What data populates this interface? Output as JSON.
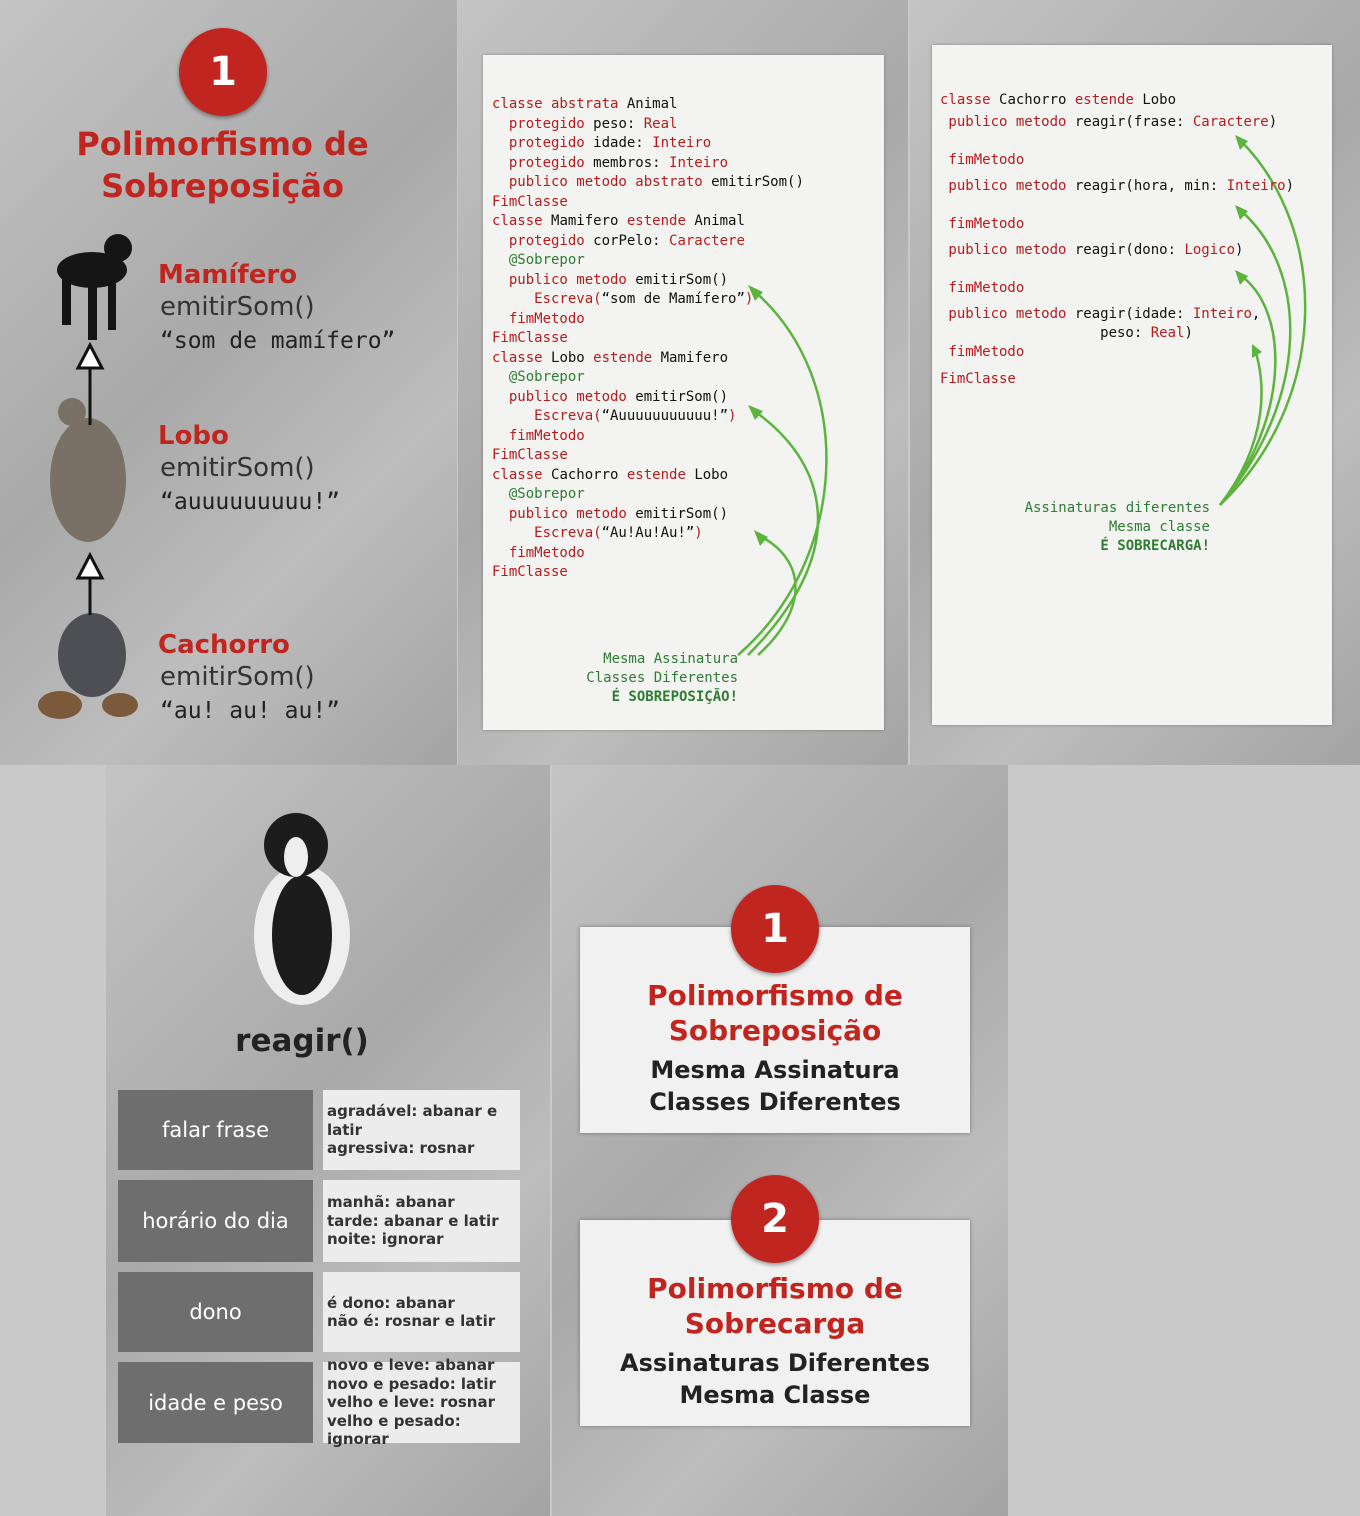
{
  "panel1": {
    "badge": "1",
    "title": [
      "Polimorfismo de",
      "Sobreposição"
    ],
    "classes": [
      {
        "name": "Mamífero",
        "method": "emitirSom()",
        "sound": "“som de mamífero”"
      },
      {
        "name": "Lobo",
        "method": "emitirSom()",
        "sound": "“auuuuuuuuu!”"
      },
      {
        "name": "Cachorro",
        "method": "emitirSom()",
        "sound": "“au! au! au!”"
      }
    ]
  },
  "panel2": {
    "lines": [
      [
        [
          "classe abstrata ",
          "#b71c1c"
        ],
        [
          "Animal",
          "#111"
        ]
      ],
      [
        [
          "  protegido ",
          "#b71c1c"
        ],
        [
          "peso: ",
          "#111"
        ],
        [
          "Real",
          "#b71c1c"
        ]
      ],
      [
        [
          "  protegido ",
          "#b71c1c"
        ],
        [
          "idade: ",
          "#111"
        ],
        [
          "Inteiro",
          "#b71c1c"
        ]
      ],
      [
        [
          "  protegido ",
          "#b71c1c"
        ],
        [
          "membros: ",
          "#111"
        ],
        [
          "Inteiro",
          "#b71c1c"
        ]
      ],
      [
        [
          "  publico metodo abstrato ",
          "#b71c1c"
        ],
        [
          "emitirSom()",
          "#111"
        ]
      ],
      [
        [
          "FimClasse",
          "#b71c1c"
        ]
      ],
      [
        [
          "classe ",
          "#b71c1c"
        ],
        [
          "Mamifero ",
          "#111"
        ],
        [
          "estende ",
          "#b71c1c"
        ],
        [
          "Animal",
          "#111"
        ]
      ],
      [
        [
          "  protegido ",
          "#b71c1c"
        ],
        [
          "corPelo: ",
          "#111"
        ],
        [
          "Caractere",
          "#b71c1c"
        ]
      ],
      [
        [
          "  @Sobrepor",
          "#2e7d32"
        ]
      ],
      [
        [
          "  publico metodo ",
          "#b71c1c"
        ],
        [
          "emitirSom()",
          "#111"
        ]
      ],
      [
        [
          "     Escreva(",
          "#b71c1c"
        ],
        [
          "“som de Mamífero”",
          "#111"
        ],
        [
          ")",
          "#b71c1c"
        ]
      ],
      [
        [
          "  fimMetodo",
          "#b71c1c"
        ]
      ],
      [
        [
          "FimClasse",
          "#b71c1c"
        ]
      ],
      [
        [
          "classe ",
          "#b71c1c"
        ],
        [
          "Lobo ",
          "#111"
        ],
        [
          "estende ",
          "#b71c1c"
        ],
        [
          "Mamifero",
          "#111"
        ]
      ],
      [
        [
          "  @Sobrepor",
          "#2e7d32"
        ]
      ],
      [
        [
          "  publico metodo ",
          "#b71c1c"
        ],
        [
          "emitirSom()",
          "#111"
        ]
      ],
      [
        [
          "     Escreva(",
          "#b71c1c"
        ],
        [
          "“Auuuuuuuuuuu!”",
          "#111"
        ],
        [
          ")",
          "#b71c1c"
        ]
      ],
      [
        [
          "  fimMetodo",
          "#b71c1c"
        ]
      ],
      [
        [
          "FimClasse",
          "#b71c1c"
        ]
      ],
      [
        [
          "classe ",
          "#b71c1c"
        ],
        [
          "Cachorro ",
          "#111"
        ],
        [
          "estende ",
          "#b71c1c"
        ],
        [
          "Lobo",
          "#111"
        ]
      ],
      [
        [
          "  @Sobrepor",
          "#2e7d32"
        ]
      ],
      [
        [
          "  publico metodo ",
          "#b71c1c"
        ],
        [
          "emitirSom()",
          "#111"
        ]
      ],
      [
        [
          "     Escreva(",
          "#b71c1c"
        ],
        [
          "“Au!Au!Au!”",
          "#111"
        ],
        [
          ")",
          "#b71c1c"
        ]
      ],
      [
        [
          "  fimMetodo",
          "#b71c1c"
        ]
      ],
      [
        [
          "FimClasse",
          "#b71c1c"
        ]
      ]
    ],
    "note": [
      "Mesma Assinatura",
      "Classes Diferentes",
      "É SOBREPOSIÇÃO!"
    ]
  },
  "panel3": {
    "lines": [
      [
        [
          "classe ",
          "#b71c1c"
        ],
        [
          "Cachorro ",
          "#111"
        ],
        [
          "estende ",
          "#b71c1c"
        ],
        [
          "Lobo",
          "#111"
        ]
      ],
      [
        [
          " publico metodo ",
          "#b71c1c"
        ],
        [
          "reagir(frase: ",
          "#111"
        ],
        [
          "Caractere",
          "#b71c1c"
        ],
        [
          ")",
          "#111"
        ]
      ],
      [
        [
          " fimMetodo",
          "#b71c1c"
        ]
      ],
      [
        [
          " publico metodo ",
          "#b71c1c"
        ],
        [
          "reagir(hora, min: ",
          "#111"
        ],
        [
          "Inteiro",
          "#b71c1c"
        ],
        [
          ")",
          "#111"
        ]
      ],
      [
        [
          " fimMetodo",
          "#b71c1c"
        ]
      ],
      [
        [
          " publico metodo ",
          "#b71c1c"
        ],
        [
          "reagir(dono: ",
          "#111"
        ],
        [
          "Logico",
          "#b71c1c"
        ],
        [
          ")",
          "#111"
        ]
      ],
      [
        [
          " fimMetodo",
          "#b71c1c"
        ]
      ],
      [
        [
          " publico metodo ",
          "#b71c1c"
        ],
        [
          "reagir(idade: ",
          "#111"
        ],
        [
          "Inteiro",
          "#b71c1c"
        ],
        [
          ",",
          "#111"
        ]
      ],
      [
        [
          "                   peso: ",
          "#111"
        ],
        [
          "Real",
          "#b71c1c"
        ],
        [
          ")",
          "#111"
        ]
      ],
      [
        [
          " fimMetodo",
          "#b71c1c"
        ]
      ],
      [
        [
          "FimClasse",
          "#b71c1c"
        ]
      ]
    ],
    "note": [
      "Assinaturas diferentes",
      "Mesma classe",
      "É SOBRECARGA!"
    ]
  },
  "panel4": {
    "title": "reagir()",
    "rows": [
      {
        "label": "falar frase",
        "items": [
          "agradável: abanar e latir",
          "agressiva: rosnar"
        ]
      },
      {
        "label": "horário do dia",
        "items": [
          "manhã: abanar",
          "tarde: abanar e latir",
          "noite: ignorar"
        ]
      },
      {
        "label": "dono",
        "items": [
          "é dono: abanar",
          "não é: rosnar e latir"
        ]
      },
      {
        "label": "idade e peso",
        "items": [
          "novo e leve: abanar",
          "novo e pesado: latir",
          "velho e leve: rosnar",
          "velho e pesado: ignorar"
        ]
      }
    ]
  },
  "panel5": {
    "cards": [
      {
        "badge": "1",
        "title": [
          "Polimorfismo de",
          "Sobreposição"
        ],
        "subtitle": [
          "Mesma Assinatura",
          "Classes Diferentes"
        ]
      },
      {
        "badge": "2",
        "title": [
          "Polimorfismo de",
          "Sobrecarga"
        ],
        "subtitle": [
          "Assinaturas Diferentes",
          "Mesma Classe"
        ]
      }
    ]
  }
}
